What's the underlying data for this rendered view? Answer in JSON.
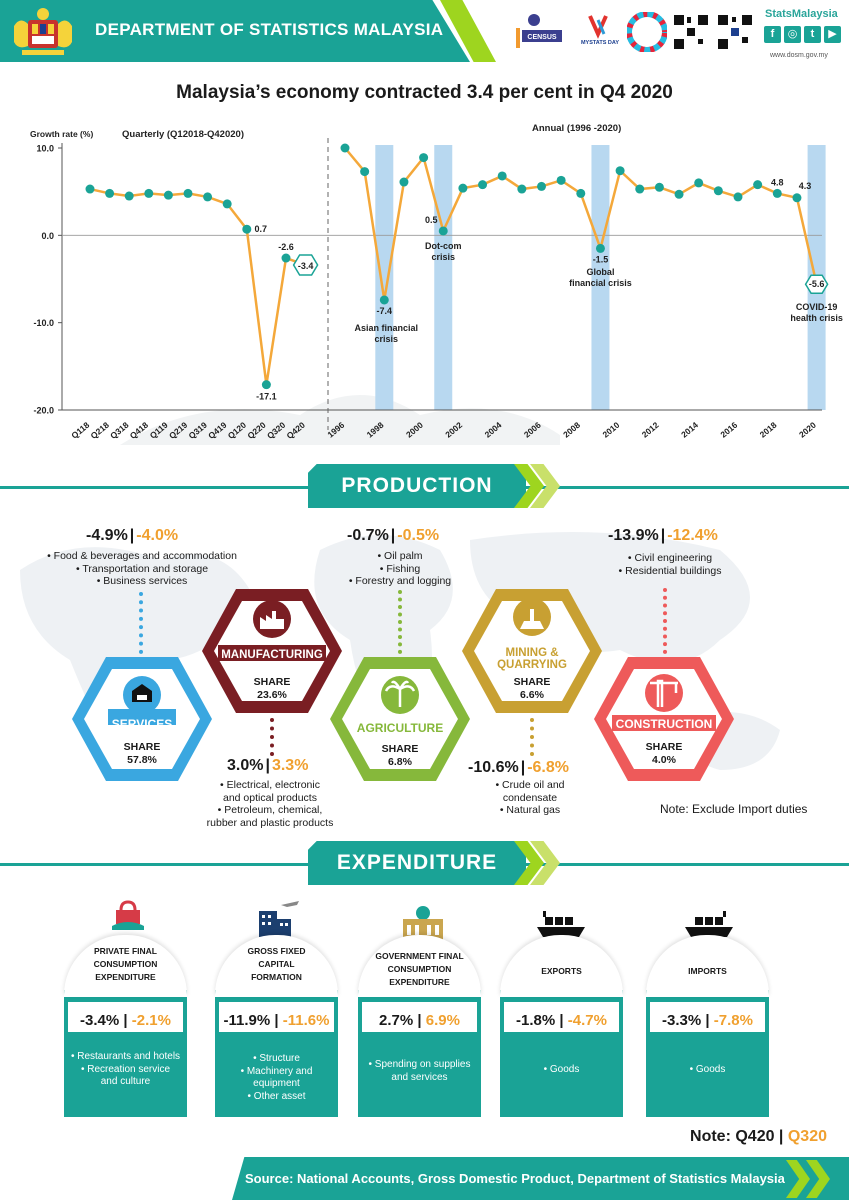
{
  "header": {
    "org_title": "DEPARTMENT OF STATISTICS MALAYSIA",
    "brand": "StatsMalaysia",
    "url": "www.dosm.gov.my",
    "logo_census": "CENSUS",
    "logo_mystats": "MYSTATS DAY",
    "social": [
      "f",
      "◎",
      "t",
      "▶"
    ]
  },
  "main_title": "Malaysia’s economy contracted 3.4 per cent in Q4 2020",
  "chart_data": {
    "type": "line",
    "ylabel": "Growth rate (%)",
    "ylim": [
      -20,
      10
    ],
    "yticks": [
      "10.0",
      "0.0",
      "-10.0",
      "-20.0"
    ],
    "quarterly": {
      "title": "Quarterly (Q12018-Q42020)",
      "categories": [
        "Q118",
        "Q218",
        "Q318",
        "Q418",
        "Q119",
        "Q219",
        "Q319",
        "Q419",
        "Q120",
        "Q220",
        "Q320",
        "Q420"
      ],
      "values": [
        5.3,
        4.8,
        4.5,
        4.8,
        4.6,
        4.8,
        4.4,
        3.6,
        0.7,
        -17.1,
        -2.6,
        -3.4
      ],
      "labels": {
        "8": "0.7",
        "9": "-17.1",
        "10": "-2.6",
        "11": "-3.4"
      }
    },
    "annual": {
      "title": "Annual (1996 -2020)",
      "years": [
        1996,
        1997,
        1998,
        1999,
        2000,
        2001,
        2002,
        2003,
        2004,
        2005,
        2006,
        2007,
        2008,
        2009,
        2010,
        2011,
        2012,
        2013,
        2014,
        2015,
        2016,
        2017,
        2018,
        2019,
        2020
      ],
      "tick_labels": [
        "1996",
        "1998",
        "2000",
        "2002",
        "2004",
        "2006",
        "2008",
        "2010",
        "2012",
        "2014",
        "2016",
        "2018",
        "2020"
      ],
      "values": [
        10.0,
        7.3,
        -7.4,
        6.1,
        8.9,
        0.5,
        5.4,
        5.8,
        6.8,
        5.3,
        5.6,
        6.3,
        4.8,
        -1.5,
        7.4,
        5.3,
        5.5,
        4.7,
        6.0,
        5.1,
        4.4,
        5.8,
        4.8,
        4.3,
        -5.6
      ],
      "labels": {
        "2": "-7.4",
        "5": "0.5",
        "13": "-1.5",
        "22": "4.8",
        "23": "4.3",
        "24": "-5.6"
      },
      "crises": [
        {
          "year": 1998,
          "label": [
            "Asian financial",
            "crisis"
          ]
        },
        {
          "year": 2001,
          "label": [
            "Dot-com",
            "crisis"
          ]
        },
        {
          "year": 2009,
          "label": [
            "Global",
            "financial crisis"
          ]
        },
        {
          "year": 2020,
          "label": [
            "COVID-19",
            "health crisis"
          ]
        }
      ]
    },
    "colors": {
      "line": "#f4a83a",
      "marker": "#1aa396",
      "crisis": "#b8d8f0"
    }
  },
  "production": {
    "title": "PRODUCTION",
    "sectors": [
      {
        "name": "SERVICES",
        "share_label": "SHARE",
        "share": "57.8%",
        "q4": "-4.9%",
        "q3": "-4.0%",
        "bullets": [
          "• Food & beverages and accommodation",
          "• Transportation and storage",
          "• Business services"
        ],
        "color": "#3aa7e0"
      },
      {
        "name": "MANUFACTURING",
        "share_label": "SHARE",
        "share": "23.6%",
        "q4": "3.0%",
        "q3": "3.3%",
        "bullets": [
          "• Electrical, electronic",
          "and optical products",
          "• Petroleum, chemical,",
          "rubber and plastic products"
        ],
        "color": "#7a1e23"
      },
      {
        "name": "AGRICULTURE",
        "share_label": "SHARE",
        "share": "6.8%",
        "q4": "-0.7%",
        "q3": "-0.5%",
        "bullets": [
          "• Oil palm",
          "• Fishing",
          "• Forestry and logging"
        ],
        "color": "#86b83b"
      },
      {
        "name": "MINING & QUARRYING",
        "share_label": "SHARE",
        "share": "6.6%",
        "q4": "-10.6%",
        "q3": "-6.8%",
        "bullets": [
          "• Crude oil and",
          "condensate",
          "• Natural gas"
        ],
        "color": "#c8a032"
      },
      {
        "name": "CONSTRUCTION",
        "share_label": "SHARE",
        "share": "4.0%",
        "q4": "-13.9%",
        "q3": "-12.4%",
        "bullets": [
          "• Civil engineering",
          "• Residential buildings"
        ],
        "color": "#ee5a5a"
      }
    ],
    "note": "Note: Exclude Import duties"
  },
  "expenditure": {
    "title": "EXPENDITURE",
    "items": [
      {
        "title": [
          "PRIVATE FINAL",
          "CONSUMPTION",
          "EXPENDITURE"
        ],
        "q4": "-3.4%",
        "q3": "-2.1%",
        "bullets": [
          "• Restaurants and hotels",
          "• Recreation service",
          "and culture"
        ]
      },
      {
        "title": [
          "GROSS FIXED",
          "CAPITAL",
          "FORMATION"
        ],
        "q4": "-11.9%",
        "q3": "-11.6%",
        "bullets": [
          "• Structure",
          "• Machinery and",
          "equipment",
          "• Other asset"
        ]
      },
      {
        "title": [
          "GOVERNMENT FINAL",
          "CONSUMPTION",
          "EXPENDITURE"
        ],
        "q4": "2.7%",
        "q3": "6.9%",
        "bullets": [
          "• Spending on supplies",
          "and services"
        ]
      },
      {
        "title": [
          "EXPORTS"
        ],
        "q4": "-1.8%",
        "q3": "-4.7%",
        "bullets": [
          "• Goods"
        ]
      },
      {
        "title": [
          "IMPORTS"
        ],
        "q4": "-3.3%",
        "q3": "-7.8%",
        "bullets": [
          "• Goods"
        ]
      }
    ]
  },
  "note_q": {
    "prefix": "Note: ",
    "q4": "Q420",
    "sep": " | ",
    "q3": "Q320"
  },
  "sep": "|",
  "footer": "Source: National Accounts, Gross Domestic Product, Department of Statistics Malaysia"
}
